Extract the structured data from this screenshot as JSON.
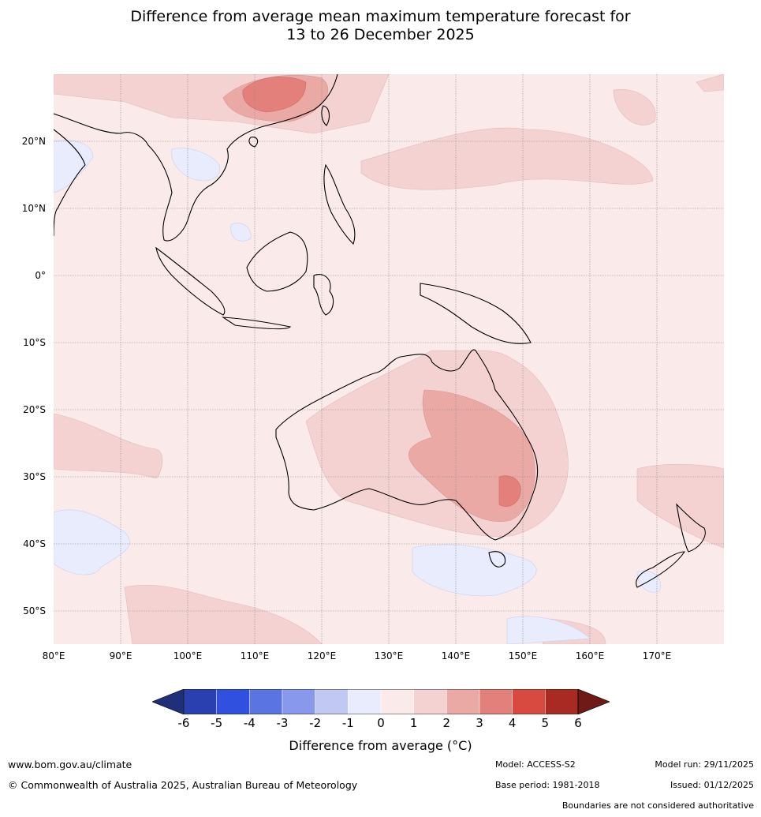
{
  "title": {
    "line1": "Difference from average mean maximum temperature forecast for",
    "line2": "13 to 26 December 2025"
  },
  "map": {
    "lat_labels": [
      "20°N",
      "10°N",
      "0°",
      "10°S",
      "20°S",
      "30°S",
      "40°S",
      "50°S"
    ],
    "lon_labels": [
      "80°E",
      "90°E",
      "100°E",
      "110°E",
      "120°E",
      "130°E",
      "140°E",
      "150°E",
      "160°E",
      "170°E"
    ],
    "lat_values": [
      20,
      10,
      0,
      -10,
      -20,
      -30,
      -40,
      -50
    ],
    "lon_values": [
      80,
      90,
      100,
      110,
      120,
      130,
      140,
      150,
      160,
      170
    ],
    "extent": {
      "lon_min": 80,
      "lon_max": 180,
      "lat_min": -55,
      "lat_max": 30
    }
  },
  "colorbar": {
    "ticks": [
      "-6",
      "-5",
      "-4",
      "-3",
      "-2",
      "-1",
      "0",
      "1",
      "2",
      "3",
      "4",
      "5",
      "6"
    ],
    "colors": [
      "#1f2f7a",
      "#2a40b0",
      "#3050e0",
      "#5a74e2",
      "#8898ec",
      "#c2c8f4",
      "#e8ecfc",
      "#fbeaea",
      "#f5d2d2",
      "#eba9a6",
      "#e4807b",
      "#d84a40",
      "#a82a22",
      "#6f1a16"
    ],
    "label": "Difference from average (°C)"
  },
  "footer": {
    "website": "www.bom.gov.au/climate",
    "copyright": "© Commonwealth of Australia 2025, Australian Bureau of Meteorology",
    "model": "Model: ACCESS-S2",
    "base_period": "Base period: 1981-2018",
    "model_run": "Model run: 29/11/2025",
    "issued": "Issued: 01/12/2025",
    "disclaimer": "Boundaries are not considered authoritative"
  }
}
